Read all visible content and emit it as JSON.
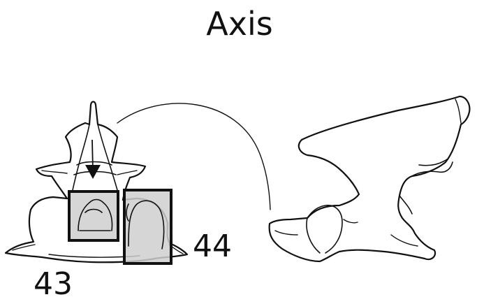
{
  "title": "Axis",
  "labels": {
    "front_region": "43",
    "side_region": "44"
  },
  "colors": {
    "stroke": "#111111",
    "highlight_fill": "#cfcfcf",
    "background": "#ffffff"
  },
  "icons": {
    "pointer": "arrow-down-icon"
  }
}
